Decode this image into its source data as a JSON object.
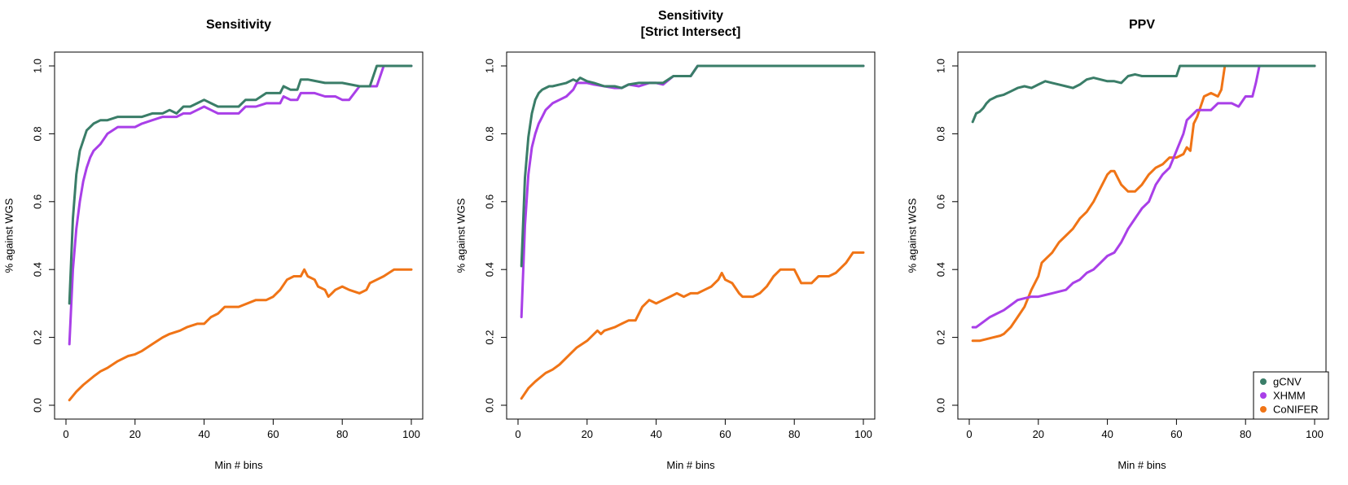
{
  "colors": {
    "gcnv": "#3a7d68",
    "xhmm": "#a93fe8",
    "conifer": "#f07416"
  },
  "chart_data": [
    {
      "type": "line",
      "title": "Sensitivity",
      "xlabel": "Min # bins",
      "ylabel": "% against WGS",
      "xlim": [
        0,
        100
      ],
      "ylim": [
        0,
        1
      ],
      "xticks": [
        "0",
        "20",
        "40",
        "60",
        "80",
        "100"
      ],
      "yticks": [
        "0.0",
        "0.2",
        "0.4",
        "0.6",
        "0.8",
        "1.0"
      ],
      "legend": null,
      "series": [
        {
          "name": "gCNV",
          "color": "#3a7d68",
          "x": [
            1,
            2,
            3,
            4,
            5,
            6,
            7,
            8,
            10,
            12,
            15,
            18,
            20,
            22,
            25,
            28,
            30,
            32,
            34,
            36,
            38,
            40,
            42,
            44,
            46,
            50,
            52,
            55,
            58,
            60,
            62,
            63,
            65,
            67,
            68,
            70,
            75,
            80,
            85,
            88,
            90,
            92,
            95,
            100
          ],
          "y": [
            0.3,
            0.55,
            0.68,
            0.75,
            0.78,
            0.81,
            0.82,
            0.83,
            0.84,
            0.84,
            0.85,
            0.85,
            0.85,
            0.85,
            0.86,
            0.86,
            0.87,
            0.86,
            0.88,
            0.88,
            0.89,
            0.9,
            0.89,
            0.88,
            0.88,
            0.88,
            0.9,
            0.9,
            0.92,
            0.92,
            0.92,
            0.94,
            0.93,
            0.93,
            0.96,
            0.96,
            0.95,
            0.95,
            0.94,
            0.94,
            1.0,
            1.0,
            1.0,
            1.0
          ]
        },
        {
          "name": "XHMM",
          "color": "#a93fe8",
          "x": [
            1,
            2,
            3,
            4,
            5,
            6,
            7,
            8,
            10,
            12,
            15,
            18,
            20,
            22,
            25,
            28,
            30,
            32,
            34,
            36,
            38,
            40,
            42,
            44,
            46,
            50,
            52,
            55,
            58,
            60,
            62,
            63,
            65,
            67,
            68,
            70,
            72,
            75,
            78,
            80,
            82,
            85,
            88,
            89,
            90,
            92,
            95,
            100
          ],
          "y": [
            0.18,
            0.4,
            0.52,
            0.6,
            0.66,
            0.7,
            0.73,
            0.75,
            0.77,
            0.8,
            0.82,
            0.82,
            0.82,
            0.83,
            0.84,
            0.85,
            0.85,
            0.85,
            0.86,
            0.86,
            0.87,
            0.88,
            0.87,
            0.86,
            0.86,
            0.86,
            0.88,
            0.88,
            0.89,
            0.89,
            0.89,
            0.91,
            0.9,
            0.9,
            0.92,
            0.92,
            0.92,
            0.91,
            0.91,
            0.9,
            0.9,
            0.94,
            0.94,
            0.94,
            0.94,
            1.0,
            1.0,
            1.0
          ]
        },
        {
          "name": "CoNIFER",
          "color": "#f07416",
          "x": [
            1,
            3,
            5,
            8,
            10,
            12,
            15,
            18,
            20,
            22,
            25,
            28,
            30,
            33,
            35,
            38,
            40,
            42,
            44,
            46,
            50,
            55,
            58,
            60,
            62,
            64,
            66,
            68,
            69,
            70,
            72,
            73,
            75,
            76,
            77,
            78,
            80,
            82,
            85,
            87,
            88,
            90,
            92,
            95,
            100
          ],
          "y": [
            0.015,
            0.04,
            0.06,
            0.085,
            0.1,
            0.11,
            0.13,
            0.145,
            0.15,
            0.16,
            0.18,
            0.2,
            0.21,
            0.22,
            0.23,
            0.24,
            0.24,
            0.26,
            0.27,
            0.29,
            0.29,
            0.31,
            0.31,
            0.32,
            0.34,
            0.37,
            0.38,
            0.38,
            0.4,
            0.38,
            0.37,
            0.35,
            0.34,
            0.32,
            0.33,
            0.34,
            0.35,
            0.34,
            0.33,
            0.34,
            0.36,
            0.37,
            0.38,
            0.4,
            0.4
          ]
        }
      ]
    },
    {
      "type": "line",
      "title": "Sensitivity\n[Strict Intersect]",
      "xlabel": "Min # bins",
      "ylabel": "% against WGS",
      "xlim": [
        0,
        100
      ],
      "ylim": [
        0,
        1
      ],
      "xticks": [
        "0",
        "20",
        "40",
        "60",
        "80",
        "100"
      ],
      "yticks": [
        "0.0",
        "0.2",
        "0.4",
        "0.6",
        "0.8",
        "1.0"
      ],
      "legend": null,
      "series": [
        {
          "name": "gCNV",
          "color": "#3a7d68",
          "x": [
            1,
            2,
            3,
            4,
            5,
            6,
            7,
            8,
            9,
            10,
            12,
            14,
            16,
            17,
            18,
            20,
            22,
            25,
            28,
            30,
            32,
            35,
            38,
            40,
            42,
            45,
            48,
            50,
            52,
            55,
            60,
            70,
            80,
            90,
            100
          ],
          "y": [
            0.41,
            0.67,
            0.79,
            0.86,
            0.9,
            0.92,
            0.93,
            0.935,
            0.94,
            0.94,
            0.945,
            0.95,
            0.96,
            0.955,
            0.965,
            0.955,
            0.95,
            0.94,
            0.94,
            0.935,
            0.945,
            0.95,
            0.95,
            0.95,
            0.95,
            0.97,
            0.97,
            0.97,
            1.0,
            1.0,
            1.0,
            1.0,
            1.0,
            1.0,
            1.0
          ]
        },
        {
          "name": "XHMM",
          "color": "#a93fe8",
          "x": [
            1,
            2,
            3,
            4,
            5,
            6,
            7,
            8,
            9,
            10,
            12,
            14,
            16,
            17,
            18,
            20,
            22,
            25,
            28,
            30,
            32,
            35,
            38,
            40,
            42,
            45,
            48,
            50,
            52,
            55,
            60,
            70,
            80,
            90,
            100
          ],
          "y": [
            0.26,
            0.53,
            0.68,
            0.76,
            0.8,
            0.83,
            0.85,
            0.87,
            0.88,
            0.89,
            0.9,
            0.91,
            0.93,
            0.95,
            0.95,
            0.95,
            0.945,
            0.94,
            0.935,
            0.935,
            0.945,
            0.94,
            0.95,
            0.95,
            0.945,
            0.97,
            0.97,
            0.97,
            1.0,
            1.0,
            1.0,
            1.0,
            1.0,
            1.0,
            1.0
          ]
        },
        {
          "name": "CoNIFER",
          "color": "#f07416",
          "x": [
            1,
            3,
            5,
            8,
            10,
            12,
            15,
            17,
            20,
            22,
            23,
            24,
            25,
            28,
            30,
            32,
            34,
            36,
            38,
            40,
            42,
            44,
            46,
            48,
            50,
            52,
            54,
            56,
            58,
            59,
            60,
            62,
            64,
            65,
            68,
            70,
            72,
            74,
            76,
            78,
            80,
            82,
            85,
            87,
            90,
            92,
            95,
            97,
            100
          ],
          "y": [
            0.02,
            0.05,
            0.07,
            0.095,
            0.105,
            0.12,
            0.15,
            0.17,
            0.19,
            0.21,
            0.22,
            0.21,
            0.22,
            0.23,
            0.24,
            0.25,
            0.25,
            0.29,
            0.31,
            0.3,
            0.31,
            0.32,
            0.33,
            0.32,
            0.33,
            0.33,
            0.34,
            0.35,
            0.37,
            0.39,
            0.37,
            0.36,
            0.33,
            0.32,
            0.32,
            0.33,
            0.35,
            0.38,
            0.4,
            0.4,
            0.4,
            0.36,
            0.36,
            0.38,
            0.38,
            0.39,
            0.42,
            0.45,
            0.45
          ]
        }
      ]
    },
    {
      "type": "line",
      "title": "PPV",
      "xlabel": "Min # bins",
      "ylabel": "% against WGS",
      "xlim": [
        0,
        100
      ],
      "ylim": [
        0,
        1
      ],
      "xticks": [
        "0",
        "20",
        "40",
        "60",
        "80",
        "100"
      ],
      "yticks": [
        "0.0",
        "0.2",
        "0.4",
        "0.6",
        "0.8",
        "1.0"
      ],
      "legend": "bottom-right",
      "series": [
        {
          "name": "gCNV",
          "color": "#3a7d68",
          "x": [
            1,
            2,
            3,
            4,
            5,
            6,
            7,
            8,
            10,
            12,
            14,
            16,
            18,
            20,
            22,
            24,
            26,
            28,
            30,
            32,
            34,
            36,
            38,
            40,
            42,
            44,
            46,
            48,
            50,
            52,
            55,
            58,
            60,
            61,
            62,
            65,
            70,
            80,
            90,
            100
          ],
          "y": [
            0.835,
            0.86,
            0.865,
            0.875,
            0.89,
            0.9,
            0.905,
            0.91,
            0.915,
            0.925,
            0.935,
            0.94,
            0.935,
            0.945,
            0.955,
            0.95,
            0.945,
            0.94,
            0.935,
            0.945,
            0.96,
            0.965,
            0.96,
            0.955,
            0.955,
            0.95,
            0.97,
            0.975,
            0.97,
            0.97,
            0.97,
            0.97,
            0.97,
            1.0,
            1.0,
            1.0,
            1.0,
            1.0,
            1.0,
            1.0
          ]
        },
        {
          "name": "XHMM",
          "color": "#a93fe8",
          "x": [
            1,
            2,
            4,
            6,
            8,
            10,
            12,
            14,
            16,
            18,
            20,
            22,
            24,
            26,
            28,
            30,
            32,
            34,
            36,
            38,
            40,
            42,
            44,
            46,
            48,
            50,
            52,
            54,
            56,
            58,
            60,
            62,
            63,
            64,
            65,
            66,
            68,
            70,
            72,
            74,
            76,
            78,
            80,
            82,
            83,
            84,
            86,
            90,
            100
          ],
          "y": [
            0.23,
            0.23,
            0.245,
            0.26,
            0.27,
            0.28,
            0.295,
            0.31,
            0.315,
            0.32,
            0.32,
            0.325,
            0.33,
            0.335,
            0.34,
            0.36,
            0.37,
            0.39,
            0.4,
            0.42,
            0.44,
            0.45,
            0.48,
            0.52,
            0.55,
            0.58,
            0.6,
            0.65,
            0.68,
            0.7,
            0.75,
            0.8,
            0.84,
            0.85,
            0.86,
            0.87,
            0.87,
            0.87,
            0.89,
            0.89,
            0.89,
            0.88,
            0.91,
            0.91,
            0.95,
            1.0,
            1.0,
            1.0,
            1.0
          ]
        },
        {
          "name": "CoNIFER",
          "color": "#f07416",
          "x": [
            1,
            3,
            5,
            7,
            9,
            10,
            12,
            14,
            16,
            18,
            20,
            21,
            22,
            24,
            26,
            28,
            30,
            32,
            34,
            36,
            38,
            40,
            41,
            42,
            43,
            44,
            46,
            48,
            50,
            52,
            54,
            56,
            58,
            60,
            62,
            63,
            64,
            65,
            66,
            68,
            70,
            72,
            73,
            74,
            76,
            80,
            100
          ],
          "y": [
            0.19,
            0.19,
            0.195,
            0.2,
            0.205,
            0.21,
            0.23,
            0.26,
            0.29,
            0.34,
            0.38,
            0.42,
            0.43,
            0.45,
            0.48,
            0.5,
            0.52,
            0.55,
            0.57,
            0.6,
            0.64,
            0.68,
            0.69,
            0.69,
            0.67,
            0.65,
            0.63,
            0.63,
            0.65,
            0.68,
            0.7,
            0.71,
            0.73,
            0.73,
            0.74,
            0.76,
            0.75,
            0.83,
            0.85,
            0.91,
            0.92,
            0.91,
            0.93,
            1.0,
            1.0,
            1.0,
            1.0
          ]
        }
      ]
    }
  ]
}
